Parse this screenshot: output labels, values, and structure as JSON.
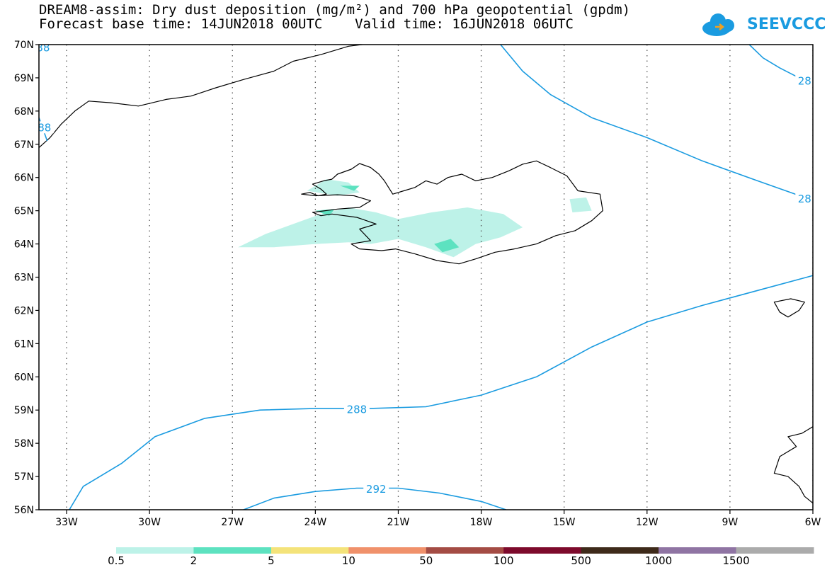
{
  "header": {
    "line1": "DREAM8-assim: Dry dust deposition (mg/m²) and 700 hPa geopotential (gpdm)",
    "line2": "Forecast base time: 14JUN2018 00UTC    Valid time: 16JUN2018 06UTC"
  },
  "logo": {
    "text": "SEEVCCC",
    "color": "#1a9be0"
  },
  "map": {
    "lon_range": [
      -34,
      -6
    ],
    "lat_range": [
      56,
      70
    ],
    "lon_ticks": [
      {
        "value": -33,
        "label": "33W"
      },
      {
        "value": -30,
        "label": "30W"
      },
      {
        "value": -27,
        "label": "27W"
      },
      {
        "value": -24,
        "label": "24W"
      },
      {
        "value": -21,
        "label": "21W"
      },
      {
        "value": -18,
        "label": "18W"
      },
      {
        "value": -15,
        "label": "15W"
      },
      {
        "value": -12,
        "label": "12W"
      },
      {
        "value": -9,
        "label": "9W"
      },
      {
        "value": -6,
        "label": "6W"
      }
    ],
    "lat_ticks": [
      {
        "value": 70,
        "label": "70N"
      },
      {
        "value": 69,
        "label": "69N"
      },
      {
        "value": 68,
        "label": "68N"
      },
      {
        "value": 67,
        "label": "67N"
      },
      {
        "value": 66,
        "label": "66N"
      },
      {
        "value": 65,
        "label": "65N"
      },
      {
        "value": 64,
        "label": "64N"
      },
      {
        "value": 63,
        "label": "63N"
      },
      {
        "value": 62,
        "label": "62N"
      },
      {
        "value": 61,
        "label": "61N"
      },
      {
        "value": 60,
        "label": "60N"
      },
      {
        "value": 59,
        "label": "59N"
      },
      {
        "value": 58,
        "label": "58N"
      },
      {
        "value": 57,
        "label": "57N"
      },
      {
        "value": 56,
        "label": "56N"
      }
    ],
    "contour_color": "#1a9be0",
    "contours": [
      {
        "level": "288",
        "points": [
          [
            -32.9,
            56
          ],
          [
            -32.4,
            56.7
          ],
          [
            -31,
            57.4
          ],
          [
            -29.8,
            58.2
          ],
          [
            -28,
            58.75
          ],
          [
            -26,
            59
          ],
          [
            -24,
            59.05
          ],
          [
            -22,
            59.05
          ],
          [
            -20,
            59.1
          ],
          [
            -18,
            59.45
          ],
          [
            -16,
            60
          ],
          [
            -14,
            60.9
          ],
          [
            -12,
            61.65
          ],
          [
            -10,
            62.15
          ],
          [
            -8,
            62.6
          ],
          [
            -6,
            63.05
          ]
        ]
      },
      {
        "level": "292",
        "points": [
          [
            -26.6,
            56
          ],
          [
            -25.5,
            56.35
          ],
          [
            -24,
            56.55
          ],
          [
            -22.5,
            56.65
          ],
          [
            -21,
            56.65
          ],
          [
            -19.5,
            56.5
          ],
          [
            -18,
            56.25
          ],
          [
            -17.1,
            56
          ]
        ]
      },
      {
        "level": "288",
        "points": [
          [
            -17.3,
            70
          ],
          [
            -16.5,
            69.2
          ],
          [
            -15.5,
            68.5
          ],
          [
            -14,
            67.8
          ],
          [
            -12,
            67.2
          ],
          [
            -10,
            66.5
          ],
          [
            -8,
            65.9
          ],
          [
            -6.3,
            65.4
          ]
        ]
      },
      {
        "level": "288",
        "points": [
          [
            -8.3,
            70
          ],
          [
            -7.8,
            69.6
          ],
          [
            -7.2,
            69.3
          ],
          [
            -6.5,
            69
          ]
        ]
      },
      {
        "level": "288",
        "points": [
          [
            -34,
            67.8
          ],
          [
            -33.7,
            67.1
          ]
        ]
      }
    ],
    "contour_labels": [
      {
        "text": "288",
        "lon": -22.5,
        "lat": 59.02
      },
      {
        "text": "292",
        "lon": -21.8,
        "lat": 56.62
      },
      {
        "text": "28",
        "lon": -6.3,
        "lat": 68.9
      },
      {
        "text": "28",
        "lon": -6.3,
        "lat": 65.35
      },
      {
        "text": "88",
        "lon": -33.85,
        "lat": 69.9
      },
      {
        "text": "88",
        "lon": -33.8,
        "lat": 67.5
      }
    ],
    "coastlines": [
      {
        "name": "iceland",
        "closed": true,
        "points": [
          [
            -24.5,
            65.5
          ],
          [
            -24.2,
            65.55
          ],
          [
            -23.9,
            65.45
          ],
          [
            -23.6,
            65.5
          ],
          [
            -23.8,
            65.65
          ],
          [
            -24.1,
            65.8
          ],
          [
            -23.7,
            65.9
          ],
          [
            -23.4,
            65.95
          ],
          [
            -23.2,
            66.1
          ],
          [
            -22.7,
            66.25
          ],
          [
            -22.4,
            66.42
          ],
          [
            -22.0,
            66.3
          ],
          [
            -21.7,
            66.1
          ],
          [
            -21.5,
            65.9
          ],
          [
            -21.2,
            65.5
          ],
          [
            -20.8,
            65.6
          ],
          [
            -20.4,
            65.7
          ],
          [
            -20.0,
            65.9
          ],
          [
            -19.6,
            65.8
          ],
          [
            -19.2,
            66.0
          ],
          [
            -18.7,
            66.1
          ],
          [
            -18.2,
            65.9
          ],
          [
            -17.6,
            66.0
          ],
          [
            -17.0,
            66.2
          ],
          [
            -16.5,
            66.4
          ],
          [
            -16.0,
            66.5
          ],
          [
            -15.5,
            66.3
          ],
          [
            -14.9,
            66.05
          ],
          [
            -14.5,
            65.6
          ],
          [
            -13.7,
            65.5
          ],
          [
            -13.6,
            65.0
          ],
          [
            -14.0,
            64.7
          ],
          [
            -14.6,
            64.4
          ],
          [
            -15.3,
            64.25
          ],
          [
            -16.0,
            64.0
          ],
          [
            -16.8,
            63.85
          ],
          [
            -17.5,
            63.75
          ],
          [
            -18.2,
            63.55
          ],
          [
            -18.8,
            63.4
          ],
          [
            -19.6,
            63.5
          ],
          [
            -20.4,
            63.7
          ],
          [
            -21.1,
            63.85
          ],
          [
            -21.6,
            63.8
          ],
          [
            -22.4,
            63.85
          ],
          [
            -22.7,
            64.0
          ],
          [
            -22.0,
            64.1
          ],
          [
            -22.4,
            64.45
          ],
          [
            -21.8,
            64.6
          ],
          [
            -22.5,
            64.8
          ],
          [
            -23.4,
            64.9
          ],
          [
            -23.8,
            64.85
          ],
          [
            -24.1,
            64.95
          ],
          [
            -23.2,
            65.05
          ],
          [
            -22.4,
            65.1
          ],
          [
            -22.0,
            65.3
          ],
          [
            -22.6,
            65.45
          ],
          [
            -23.2,
            65.48
          ],
          [
            -24.0,
            65.45
          ],
          [
            -24.5,
            65.5
          ]
        ]
      },
      {
        "name": "greenland-east",
        "closed": false,
        "points": [
          [
            -34,
            66.9
          ],
          [
            -33.6,
            67.2
          ],
          [
            -33.2,
            67.6
          ],
          [
            -32.7,
            68.0
          ],
          [
            -32.2,
            68.3
          ],
          [
            -31.4,
            68.25
          ],
          [
            -30.4,
            68.15
          ],
          [
            -29.4,
            68.35
          ],
          [
            -28.5,
            68.45
          ],
          [
            -27.6,
            68.7
          ],
          [
            -26.6,
            68.95
          ],
          [
            -25.5,
            69.2
          ],
          [
            -24.8,
            69.5
          ],
          [
            -23.8,
            69.7
          ],
          [
            -22.8,
            69.95
          ],
          [
            -22.3,
            70
          ]
        ]
      },
      {
        "name": "faroe",
        "closed": true,
        "points": [
          [
            -7.4,
            62.25
          ],
          [
            -6.8,
            62.35
          ],
          [
            -6.3,
            62.25
          ],
          [
            -6.5,
            62.0
          ],
          [
            -6.9,
            61.8
          ],
          [
            -7.2,
            61.95
          ],
          [
            -7.4,
            62.25
          ]
        ]
      },
      {
        "name": "scotland-hebrides",
        "closed": false,
        "points": [
          [
            -6,
            58.5
          ],
          [
            -6.4,
            58.3
          ],
          [
            -6.9,
            58.2
          ],
          [
            -6.6,
            57.9
          ],
          [
            -7.2,
            57.6
          ],
          [
            -7.4,
            57.1
          ],
          [
            -6.9,
            57.0
          ],
          [
            -6.5,
            56.7
          ],
          [
            -6.3,
            56.4
          ],
          [
            -6.0,
            56.2
          ]
        ]
      }
    ],
    "dust_fill": [
      {
        "level": "0.5-2",
        "color": "#bdf2e8",
        "points": [
          [
            -26.8,
            63.9
          ],
          [
            -25.8,
            64.3
          ],
          [
            -24.8,
            64.6
          ],
          [
            -23.8,
            64.9
          ],
          [
            -22.8,
            65.1
          ],
          [
            -21.8,
            64.95
          ],
          [
            -21.0,
            64.75
          ],
          [
            -19.8,
            64.95
          ],
          [
            -18.5,
            65.1
          ],
          [
            -17.2,
            64.9
          ],
          [
            -16.5,
            64.5
          ],
          [
            -17.3,
            64.2
          ],
          [
            -18.2,
            64.0
          ],
          [
            -19.0,
            63.6
          ],
          [
            -20.0,
            63.9
          ],
          [
            -21.0,
            64.15
          ],
          [
            -22.0,
            64.0
          ],
          [
            -22.8,
            64.05
          ],
          [
            -24.0,
            64.0
          ],
          [
            -25.5,
            63.9
          ],
          [
            -26.8,
            63.9
          ]
        ]
      },
      {
        "level": "0.5-2",
        "color": "#bdf2e8",
        "points": [
          [
            -24.3,
            65.6
          ],
          [
            -23.6,
            65.95
          ],
          [
            -22.8,
            65.85
          ],
          [
            -22.4,
            65.55
          ],
          [
            -23.2,
            65.45
          ],
          [
            -24.3,
            65.6
          ]
        ]
      },
      {
        "level": "0.5-2",
        "color": "#bdf2e8",
        "points": [
          [
            -14.8,
            65.35
          ],
          [
            -14.2,
            65.4
          ],
          [
            -14.0,
            65.0
          ],
          [
            -14.7,
            64.95
          ],
          [
            -14.8,
            65.35
          ]
        ]
      },
      {
        "level": "2-5",
        "color": "#5de2c0",
        "points": [
          [
            -19.7,
            64.0
          ],
          [
            -19.1,
            64.15
          ],
          [
            -18.8,
            63.9
          ],
          [
            -19.4,
            63.75
          ],
          [
            -19.7,
            64.0
          ]
        ]
      },
      {
        "level": "2-5",
        "color": "#5de2c0",
        "points": [
          [
            -24.0,
            65.0
          ],
          [
            -23.3,
            65.05
          ],
          [
            -23.5,
            64.85
          ],
          [
            -24.0,
            65.0
          ]
        ]
      },
      {
        "level": "2-5",
        "color": "#5de2c0",
        "points": [
          [
            -23.1,
            65.75
          ],
          [
            -22.4,
            65.75
          ],
          [
            -22.6,
            65.6
          ],
          [
            -23.1,
            65.75
          ]
        ]
      }
    ]
  },
  "colorbar": {
    "segments": [
      {
        "color": "#bdf2e8",
        "label": "0.5"
      },
      {
        "color": "#5de2c0",
        "label": "2"
      },
      {
        "color": "#f4e37a",
        "label": "5"
      },
      {
        "color": "#f0916b",
        "label": "10"
      },
      {
        "color": "#a44c44",
        "label": "50"
      },
      {
        "color": "#7d0a2c",
        "label": "100"
      },
      {
        "color": "#3e2a1a",
        "label": "500"
      },
      {
        "color": "#8f74a3",
        "label": "1000"
      },
      {
        "color": "#ababab",
        "label": "1500"
      }
    ]
  }
}
